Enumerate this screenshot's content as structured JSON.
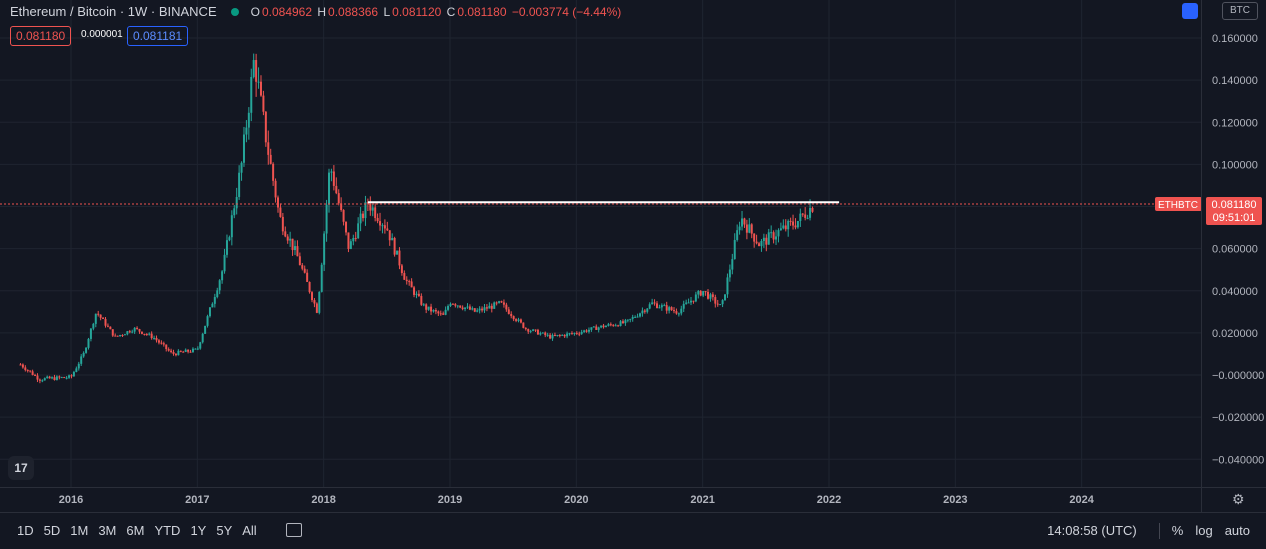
{
  "legend": {
    "symbol": "Ethereum / Bitcoin · 1W · BINANCE",
    "open_label": "O",
    "open": "0.084962",
    "high_label": "H",
    "high": "0.088366",
    "low_label": "L",
    "low": "0.081120",
    "close_label": "C",
    "close": "0.081180",
    "change": "−0.003774 (−4.44%)",
    "status_dot_color": "#089981"
  },
  "quote": {
    "bid": "0.081180",
    "spread": "0.000001",
    "ask": "0.081181"
  },
  "currency_button": "BTC",
  "price_label": {
    "ticker": "ETHBTC",
    "price": "0.081180",
    "countdown": "09:51:01",
    "color": "#ef5350"
  },
  "bottom_bar": {
    "ranges": [
      "1D",
      "5D",
      "1M",
      "3M",
      "6M",
      "YTD",
      "1Y",
      "5Y",
      "All"
    ],
    "time": "14:08:58 (UTC)",
    "percent": "%",
    "log": "log",
    "auto": "auto"
  },
  "colors": {
    "up": "#26a69a",
    "down": "#ef5350",
    "grid": "#1f2430",
    "text": "#b2b5be"
  },
  "chart_data": {
    "type": "candlestick",
    "title": "",
    "ylabel": "",
    "xlabel": "",
    "ylim": [
      -0.05,
      0.17
    ],
    "y_ticks": [
      "0.160000",
      "0.140000",
      "0.120000",
      "0.100000",
      "0.060000",
      "0.040000",
      "0.020000",
      "−0.000000",
      "−0.020000",
      "−0.040000"
    ],
    "x_ticks": [
      "2016",
      "2017",
      "2018",
      "2019",
      "2020",
      "2021",
      "2022",
      "2023",
      "2024"
    ],
    "horizontal_line": 0.082,
    "last_price": 0.08118,
    "approx_close_series": [
      {
        "t": 2015.6,
        "v": 0.005
      },
      {
        "t": 2015.75,
        "v": -0.002
      },
      {
        "t": 2016.0,
        "v": -0.001
      },
      {
        "t": 2016.1,
        "v": 0.01
      },
      {
        "t": 2016.2,
        "v": 0.03
      },
      {
        "t": 2016.35,
        "v": 0.018
      },
      {
        "t": 2016.5,
        "v": 0.022
      },
      {
        "t": 2016.65,
        "v": 0.018
      },
      {
        "t": 2016.8,
        "v": 0.01
      },
      {
        "t": 2017.0,
        "v": 0.012
      },
      {
        "t": 2017.2,
        "v": 0.05
      },
      {
        "t": 2017.35,
        "v": 0.1
      },
      {
        "t": 2017.45,
        "v": 0.15
      },
      {
        "t": 2017.55,
        "v": 0.11
      },
      {
        "t": 2017.65,
        "v": 0.075
      },
      {
        "t": 2017.8,
        "v": 0.055
      },
      {
        "t": 2017.95,
        "v": 0.03
      },
      {
        "t": 2018.05,
        "v": 0.1
      },
      {
        "t": 2018.2,
        "v": 0.06
      },
      {
        "t": 2018.35,
        "v": 0.082
      },
      {
        "t": 2018.5,
        "v": 0.07
      },
      {
        "t": 2018.65,
        "v": 0.045
      },
      {
        "t": 2018.8,
        "v": 0.032
      },
      {
        "t": 2018.95,
        "v": 0.028
      },
      {
        "t": 2019.0,
        "v": 0.035
      },
      {
        "t": 2019.2,
        "v": 0.03
      },
      {
        "t": 2019.4,
        "v": 0.034
      },
      {
        "t": 2019.6,
        "v": 0.022
      },
      {
        "t": 2019.8,
        "v": 0.018
      },
      {
        "t": 2020.0,
        "v": 0.02
      },
      {
        "t": 2020.2,
        "v": 0.023
      },
      {
        "t": 2020.4,
        "v": 0.025
      },
      {
        "t": 2020.6,
        "v": 0.034
      },
      {
        "t": 2020.8,
        "v": 0.03
      },
      {
        "t": 2021.0,
        "v": 0.04
      },
      {
        "t": 2021.15,
        "v": 0.032
      },
      {
        "t": 2021.3,
        "v": 0.075
      },
      {
        "t": 2021.45,
        "v": 0.062
      },
      {
        "t": 2021.6,
        "v": 0.068
      },
      {
        "t": 2021.75,
        "v": 0.073
      },
      {
        "t": 2021.88,
        "v": 0.081
      }
    ]
  }
}
